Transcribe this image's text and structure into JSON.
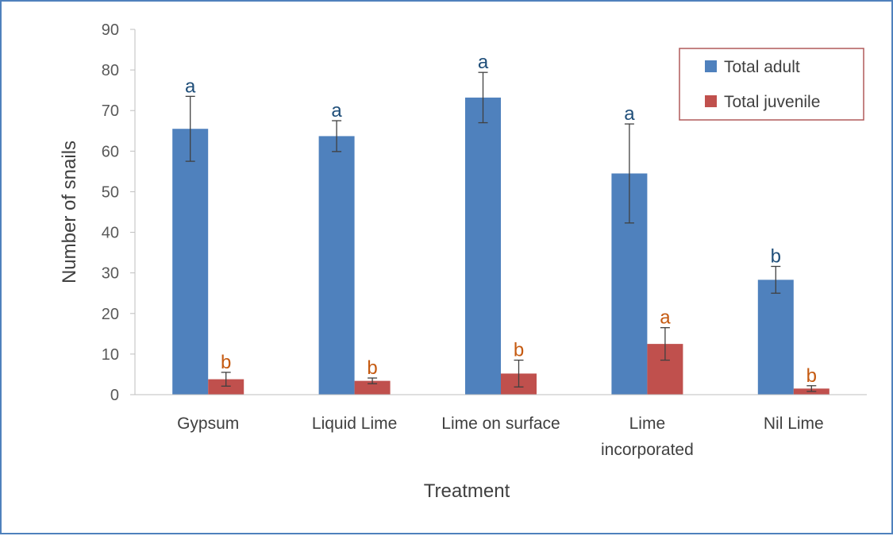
{
  "chart_data": {
    "type": "bar",
    "title": "",
    "xlabel": "Treatment",
    "ylabel": "Number of snails",
    "ylim": [
      0,
      90
    ],
    "yticks": [
      0,
      10,
      20,
      30,
      40,
      50,
      60,
      70,
      80,
      90
    ],
    "grid": false,
    "legend_position": "top-right",
    "categories": [
      [
        "Gypsum"
      ],
      [
        "Liquid Lime"
      ],
      [
        "Lime on surface"
      ],
      [
        "Lime",
        "incorporated"
      ],
      [
        "Nil Lime"
      ]
    ],
    "series": [
      {
        "name": "Total adult",
        "color": "#4f81bd",
        "label_color": "#1f4e79",
        "values": [
          65.5,
          63.7,
          73.2,
          54.5,
          28.3
        ],
        "error": [
          8.0,
          3.8,
          6.2,
          12.2,
          3.3
        ],
        "letters": [
          "a",
          "a",
          "a",
          "a",
          "b"
        ]
      },
      {
        "name": "Total juvenile",
        "color": "#c0504d",
        "label_color": "#c55a11",
        "values": [
          3.8,
          3.4,
          5.2,
          12.5,
          1.5
        ],
        "error": [
          1.7,
          0.7,
          3.3,
          4.0,
          0.7
        ],
        "letters": [
          "b",
          "b",
          "b",
          "a",
          "b"
        ]
      }
    ]
  }
}
